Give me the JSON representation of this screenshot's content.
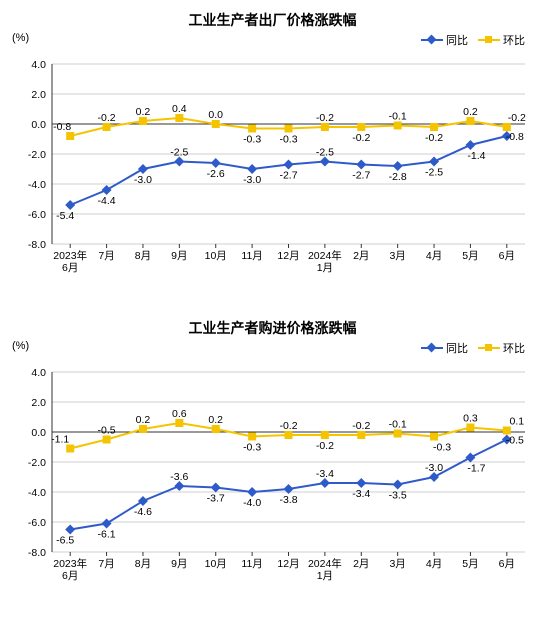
{
  "charts": [
    {
      "title": "工业生产者出厂价格涨跌幅",
      "y_unit": "(%)",
      "ylim": [
        -8,
        4
      ],
      "ystep": 2,
      "categories": [
        "2023年\n6月",
        "7月",
        "8月",
        "9月",
        "10月",
        "11月",
        "12月",
        "2024年\n1月",
        "2月",
        "3月",
        "4月",
        "5月",
        "6月"
      ],
      "series": [
        {
          "name": "同比",
          "color": "#2f5bca",
          "marker": "diamond",
          "values": [
            -5.4,
            -4.4,
            -3.0,
            -2.5,
            -2.6,
            -3.0,
            -2.7,
            -2.5,
            -2.7,
            -2.8,
            -2.5,
            -1.4,
            -0.8
          ],
          "label_offset": [
            [
              -5,
              14
            ],
            [
              0,
              14
            ],
            [
              0,
              14
            ],
            [
              0,
              -6
            ],
            [
              0,
              14
            ],
            [
              0,
              14
            ],
            [
              0,
              14
            ],
            [
              0,
              -6
            ],
            [
              0,
              14
            ],
            [
              0,
              14
            ],
            [
              0,
              14
            ],
            [
              6,
              14
            ],
            [
              8,
              4
            ]
          ]
        },
        {
          "name": "环比",
          "color": "#f5c400",
          "marker": "square",
          "values": [
            -0.8,
            -0.2,
            0.2,
            0.4,
            0.0,
            -0.3,
            -0.3,
            -0.2,
            -0.2,
            -0.1,
            -0.2,
            0.2,
            -0.2
          ],
          "label_offset": [
            [
              -8,
              -6
            ],
            [
              0,
              -6
            ],
            [
              0,
              -6
            ],
            [
              0,
              -6
            ],
            [
              0,
              -6
            ],
            [
              0,
              14
            ],
            [
              0,
              14
            ],
            [
              0,
              -6
            ],
            [
              0,
              14
            ],
            [
              0,
              -6
            ],
            [
              0,
              14
            ],
            [
              0,
              -6
            ],
            [
              10,
              -6
            ]
          ],
          "label_color": "#000000"
        }
      ],
      "title_fontsize": 14,
      "label_fontsize": 10.5,
      "tick_fontsize": 10.5,
      "grid_color": "#bfbfbf",
      "axis_color": "#333333",
      "background": "#ffffff",
      "line_width": 2,
      "marker_size": 5
    },
    {
      "title": "工业生产者购进价格涨跌幅",
      "y_unit": "(%)",
      "ylim": [
        -8,
        4
      ],
      "ystep": 2,
      "categories": [
        "2023年\n6月",
        "7月",
        "8月",
        "9月",
        "10月",
        "11月",
        "12月",
        "2024年\n1月",
        "2月",
        "3月",
        "4月",
        "5月",
        "6月"
      ],
      "series": [
        {
          "name": "同比",
          "color": "#2f5bca",
          "marker": "diamond",
          "values": [
            -6.5,
            -6.1,
            -4.6,
            -3.6,
            -3.7,
            -4.0,
            -3.8,
            -3.4,
            -3.4,
            -3.5,
            -3.0,
            -1.7,
            -0.5
          ],
          "label_offset": [
            [
              -5,
              14
            ],
            [
              0,
              14
            ],
            [
              0,
              14
            ],
            [
              0,
              -6
            ],
            [
              0,
              14
            ],
            [
              0,
              14
            ],
            [
              0,
              14
            ],
            [
              0,
              -6
            ],
            [
              0,
              14
            ],
            [
              0,
              14
            ],
            [
              0,
              -6
            ],
            [
              6,
              14
            ],
            [
              8,
              4
            ]
          ]
        },
        {
          "name": "环比",
          "color": "#f5c400",
          "marker": "square",
          "values": [
            -1.1,
            -0.5,
            0.2,
            0.6,
            0.2,
            -0.3,
            -0.2,
            -0.2,
            -0.2,
            -0.1,
            -0.3,
            0.3,
            0.1
          ],
          "label_offset": [
            [
              -10,
              -6
            ],
            [
              0,
              -6
            ],
            [
              0,
              -6
            ],
            [
              0,
              -6
            ],
            [
              0,
              -6
            ],
            [
              0,
              14
            ],
            [
              0,
              -6
            ],
            [
              0,
              14
            ],
            [
              0,
              -6
            ],
            [
              0,
              -6
            ],
            [
              8,
              14
            ],
            [
              0,
              -6
            ],
            [
              10,
              -6
            ]
          ],
          "label_color": "#000000"
        }
      ],
      "title_fontsize": 14,
      "label_fontsize": 10.5,
      "tick_fontsize": 10.5,
      "grid_color": "#bfbfbf",
      "axis_color": "#333333",
      "background": "#ffffff",
      "line_width": 2,
      "marker_size": 5
    }
  ],
  "legend_labels": {
    "tb": "同比",
    "hb": "环比"
  }
}
